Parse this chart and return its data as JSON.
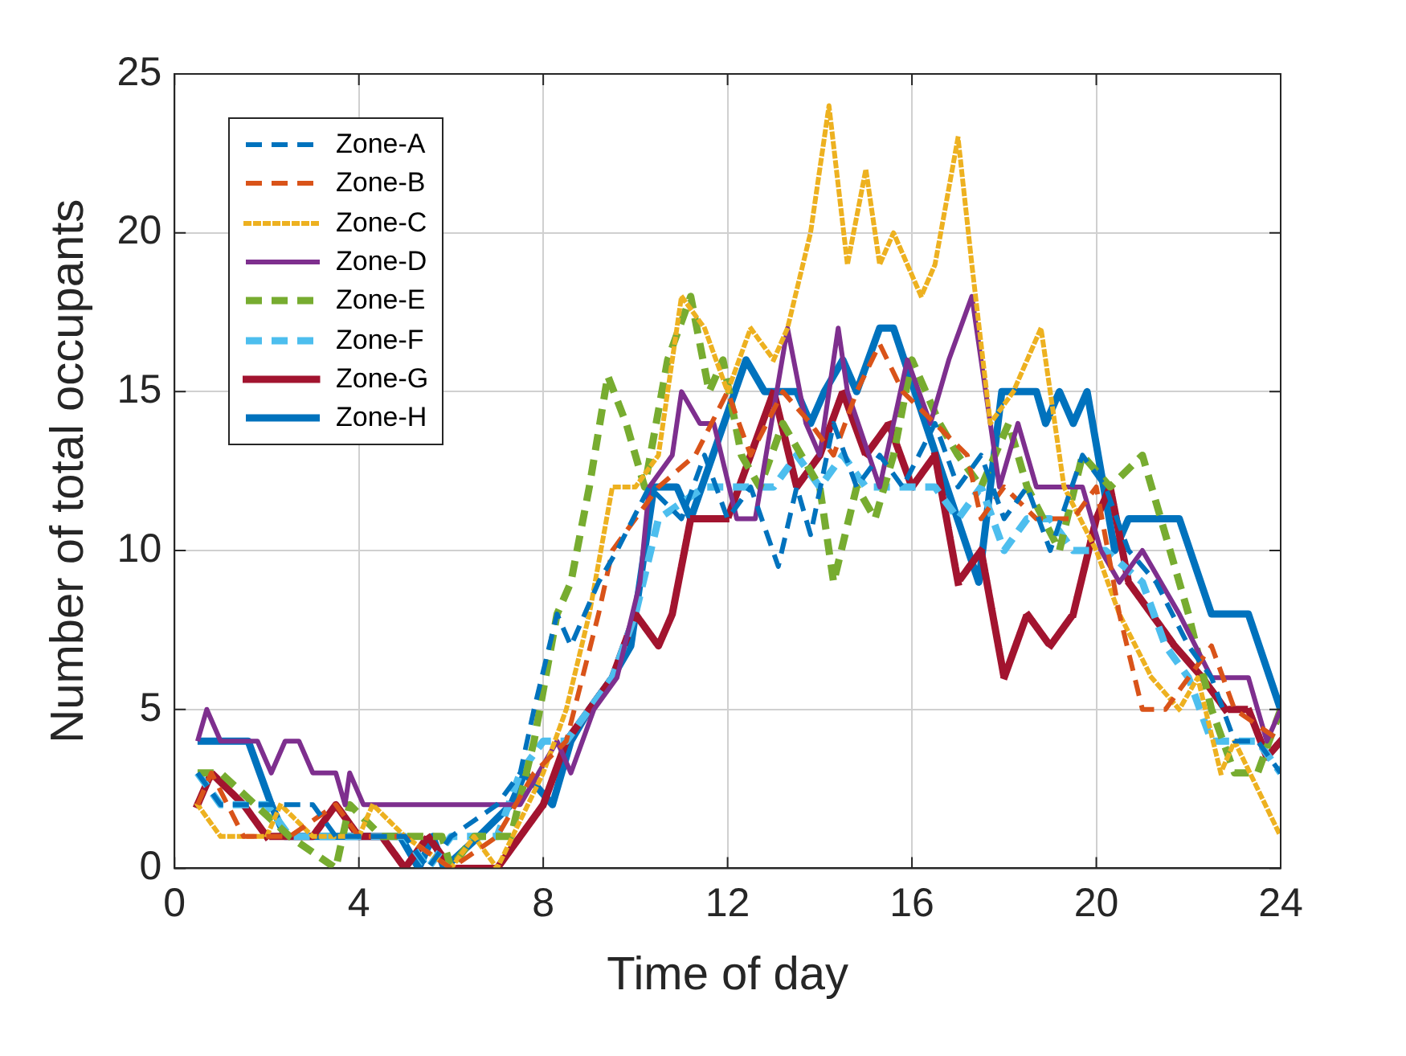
{
  "chart_data": {
    "type": "line",
    "xlabel": "Time of day",
    "ylabel": "Number of total occupants",
    "xlim": [
      0,
      24
    ],
    "xticks": [
      0,
      4,
      8,
      12,
      16,
      20,
      24
    ],
    "ylim": [
      0,
      25
    ],
    "yticks": [
      0,
      5,
      10,
      15,
      20,
      25
    ],
    "grid": true,
    "legend": "top left",
    "marker": "none",
    "series": [
      {
        "name": "Zone-A",
        "color": "#0072bd",
        "line_style": "dashed",
        "x": [
          0.5,
          1,
          3,
          3.5,
          5,
          5.5,
          6,
          7,
          7.5,
          7.8,
          8.3,
          8.6,
          9.2,
          9.6,
          10.3,
          11,
          11.5,
          12,
          12.5,
          13.1,
          13.5,
          13.8,
          14.3,
          14.8,
          15.3,
          15.8,
          16.5,
          17,
          17.5,
          18,
          18.5,
          19,
          19.7,
          20.2,
          20.7,
          21.3,
          22,
          22.5,
          23,
          23.5,
          24
        ],
        "values": [
          3,
          2,
          2,
          1,
          1,
          0,
          1,
          2,
          3,
          5,
          8,
          7,
          9,
          10,
          12,
          11,
          13,
          11,
          12,
          9.5,
          12,
          10.5,
          14,
          12,
          13,
          12,
          14,
          12,
          13,
          11,
          12,
          10,
          13,
          12,
          10,
          9,
          7,
          6,
          4,
          4,
          3
        ]
      },
      {
        "name": "Zone-B",
        "color": "#d95319",
        "line_style": "dashed",
        "x": [
          0.5,
          0.8,
          1.5,
          2.5,
          3.5,
          4,
          5,
          6,
          7,
          7.8,
          8.5,
          9.2,
          9.5,
          10,
          10.5,
          11.3,
          12,
          12.5,
          13.2,
          13.8,
          14.3,
          14.8,
          15.3,
          15.8,
          16.5,
          17.2,
          17.5,
          18,
          18.7,
          19.5,
          20,
          20.5,
          21,
          21.5,
          22,
          22.5,
          23,
          24
        ],
        "values": [
          2,
          3,
          1,
          1,
          2,
          1,
          1,
          0,
          1,
          3,
          4,
          8,
          10,
          11,
          12,
          13,
          15,
          13,
          15,
          14,
          13,
          15,
          16.5,
          15,
          14,
          13,
          11,
          12,
          11,
          11,
          12,
          8,
          5,
          5,
          6,
          7,
          5,
          4
        ]
      },
      {
        "name": "Zone-C",
        "color": "#edb120",
        "line_style": "dotted",
        "x": [
          0.5,
          1,
          2,
          2.3,
          3,
          4,
          4.3,
          5,
          6,
          6.5,
          7,
          8,
          8.5,
          9,
          9.5,
          10,
          10.5,
          11,
          11.5,
          12,
          12.5,
          13,
          13.3,
          13.8,
          14.2,
          14.6,
          15,
          15.3,
          15.6,
          16.2,
          16.5,
          17,
          17.3,
          17.7,
          18.2,
          18.8,
          19.3,
          20,
          20.5,
          21.2,
          21.8,
          22.2,
          22.7,
          23,
          24
        ],
        "values": [
          2,
          1,
          1,
          2,
          1,
          1,
          2,
          1,
          0,
          1,
          0,
          3,
          5,
          8,
          12,
          12,
          13,
          18,
          17,
          15,
          17,
          16,
          17,
          20,
          24,
          19,
          22,
          19,
          20,
          18,
          19,
          23,
          19,
          14,
          15,
          17,
          12,
          10,
          8,
          6,
          5,
          6,
          3,
          4,
          1
        ]
      },
      {
        "name": "Zone-D",
        "color": "#7e2f8e",
        "line_style": "solid",
        "x": [
          0.5,
          0.7,
          1,
          1.8,
          2.1,
          2.4,
          2.7,
          3,
          3.5,
          3.7,
          3.8,
          4.1,
          7.3,
          7.5,
          8.3,
          8.6,
          9.1,
          9.6,
          10.1,
          10.3,
          10.8,
          11,
          11.4,
          11.7,
          12.2,
          12.6,
          13.3,
          13.7,
          14,
          14.4,
          14.6,
          15.3,
          15.9,
          16.4,
          16.8,
          17.3,
          17.9,
          18.3,
          18.7,
          19.7,
          20.1,
          20.5,
          21,
          21.8,
          22.5,
          23.3,
          23.7,
          24
        ],
        "values": [
          4,
          5,
          4,
          4,
          3,
          4,
          4,
          3,
          3,
          2,
          3,
          2,
          2,
          2,
          4,
          3,
          5,
          6,
          9,
          12,
          13,
          15,
          14,
          14,
          11,
          11,
          17,
          14,
          13,
          17,
          15,
          12,
          16,
          14,
          16,
          18,
          12,
          14,
          12,
          12,
          10,
          9,
          10,
          8,
          6,
          6,
          4,
          5
        ]
      },
      {
        "name": "Zone-E",
        "color": "#77ac30",
        "line_style": "dashed",
        "x": [
          0.5,
          1,
          2.5,
          3.5,
          3.8,
          4.5,
          5.8,
          6,
          6.5,
          7.3,
          7.8,
          8.3,
          8.6,
          9,
          9.4,
          9.8,
          10.2,
          10.7,
          11.2,
          11.6,
          11.9,
          12.3,
          12.7,
          13.2,
          13.6,
          14,
          14.3,
          14.8,
          15.2,
          15.6,
          16,
          16.6,
          17,
          17.5,
          18.1,
          18.5,
          19.2,
          19.7,
          20.3,
          21,
          21.6,
          22,
          22.5,
          23,
          23.5,
          24
        ],
        "values": [
          3,
          3,
          1,
          0,
          2,
          1,
          1,
          0,
          1,
          1,
          4,
          8,
          9,
          12,
          15.5,
          14,
          12,
          16,
          18,
          15,
          16,
          13,
          12,
          14,
          13,
          12,
          9,
          12,
          11,
          13,
          16,
          14,
          13,
          12,
          14,
          12,
          10,
          13,
          12,
          13,
          10,
          8,
          5,
          3,
          3,
          5
        ]
      },
      {
        "name": "Zone-F",
        "color": "#4dbeee",
        "line_style": "dashed",
        "x": [
          0.5,
          1,
          2,
          2.5,
          5,
          5.5,
          6,
          7,
          7.5,
          8,
          8.5,
          9,
          9.5,
          10,
          10.5,
          11.5,
          12,
          13,
          13.5,
          14,
          14.5,
          15,
          16,
          16.5,
          17,
          17.5,
          18,
          18.5,
          19,
          19.5,
          20.2,
          21,
          21.5,
          22,
          22.5,
          23.5,
          24
        ],
        "values": [
          3,
          2,
          2,
          1,
          1,
          0,
          1,
          1,
          3,
          4,
          4,
          5,
          6,
          8,
          11,
          12,
          12,
          12,
          13,
          12,
          13,
          12,
          12,
          12,
          11,
          12,
          10,
          11,
          11,
          10,
          10,
          9,
          7,
          6,
          4,
          4,
          3
        ]
      },
      {
        "name": "Zone-G",
        "color": "#a2142f",
        "line_style": "dotted",
        "x": [
          0.5,
          0.8,
          1.5,
          2,
          3,
          3.5,
          4,
          4.5,
          5,
          5.5,
          6,
          7,
          7.5,
          8,
          8.5,
          9.5,
          10,
          10.5,
          10.8,
          11.2,
          12,
          12.5,
          13,
          13.5,
          14,
          14.5,
          15,
          15.5,
          16,
          16.5,
          17,
          17.5,
          18,
          18.5,
          19,
          19.5,
          20,
          20.3,
          20.7,
          21.2,
          21.7,
          22.3,
          22.8,
          23.3,
          23.7,
          24
        ],
        "values": [
          2,
          3,
          2,
          1,
          1,
          2,
          1,
          1,
          0,
          1,
          0,
          0,
          1,
          2,
          4,
          6,
          8,
          7,
          8,
          11,
          11,
          13,
          15,
          12,
          13,
          15,
          13,
          14,
          12,
          13,
          9,
          10,
          6,
          8,
          7,
          8,
          11,
          12,
          9,
          8,
          7,
          6,
          5,
          5,
          3.5,
          4
        ]
      },
      {
        "name": "Zone-H",
        "color": "#0072bd",
        "line_style": "solid",
        "x": [
          0.5,
          1.6,
          2.1,
          2.4,
          4.9,
          5.3,
          5.6,
          5.85,
          6.6,
          7.3,
          7.6,
          8.2,
          8.6,
          9,
          9.5,
          9.9,
          10.4,
          10.9,
          11.2,
          12.4,
          12.8,
          13.5,
          13.8,
          14.1,
          14.5,
          14.8,
          15.3,
          15.6,
          17.45,
          17.95,
          18.7,
          18.9,
          19.2,
          19.5,
          19.8,
          20.4,
          20.7,
          21.8,
          22.5,
          23.3,
          24
        ],
        "values": [
          4,
          4,
          2,
          1,
          1,
          0,
          1,
          0,
          1,
          2,
          3,
          2,
          4,
          5,
          6,
          7,
          12,
          12,
          11,
          16,
          15,
          15,
          14,
          15,
          16,
          15,
          17,
          17,
          9,
          15,
          15,
          14,
          15,
          14,
          15,
          10,
          11,
          11,
          8,
          8,
          5
        ]
      }
    ]
  }
}
